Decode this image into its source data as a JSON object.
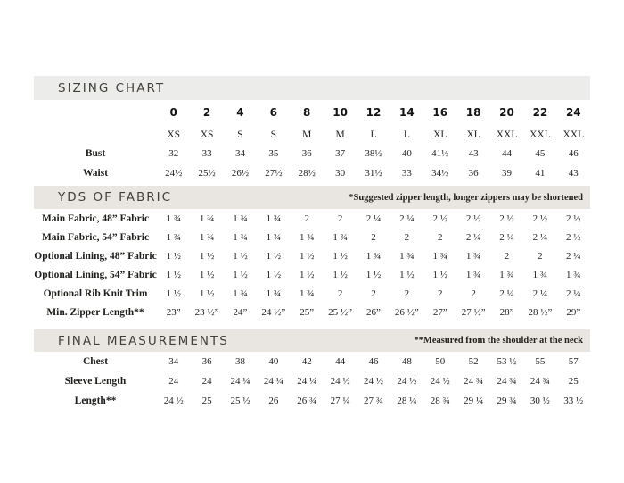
{
  "colors": {
    "page_background": "#ffffff",
    "header_bar_gray": "#ececea",
    "header_bar_beige": "#e9e6e1",
    "header_title_text": "#43403c",
    "body_text": "#232220"
  },
  "sizing_chart": {
    "title": "SIZING CHART",
    "size_numbers": [
      "0",
      "2",
      "4",
      "6",
      "8",
      "10",
      "12",
      "14",
      "16",
      "18",
      "20",
      "22",
      "24"
    ],
    "size_letters": [
      "XS",
      "XS",
      "S",
      "S",
      "M",
      "M",
      "L",
      "L",
      "XL",
      "XL",
      "XXL",
      "XXL",
      "XXL"
    ],
    "rows": [
      {
        "label": "Bust",
        "values": [
          "32",
          "33",
          "34",
          "35",
          "36",
          "37",
          "38½",
          "40",
          "41½",
          "43",
          "44",
          "45",
          "46"
        ]
      },
      {
        "label": "Waist",
        "values": [
          "24½",
          "25½",
          "26½",
          "27½",
          "28½",
          "30",
          "31½",
          "33",
          "34½",
          "36",
          "39",
          "41",
          "43"
        ]
      }
    ]
  },
  "yds_of_fabric": {
    "title": "YDS OF FABRIC",
    "note": "*Suggested zipper length, longer zippers may be shortened",
    "rows": [
      {
        "label": "Main Fabric, 48” Fabric",
        "values": [
          "1 ¾",
          "1 ¾",
          "1 ¾",
          "1 ¾",
          "2",
          "2",
          "2 ¼",
          "2 ¼",
          "2 ½",
          "2 ½",
          "2 ½",
          "2 ½",
          "2 ½"
        ]
      },
      {
        "label": "Main Fabric, 54” Fabric",
        "values": [
          "1 ¾",
          "1 ¾",
          "1 ¾",
          "1 ¾",
          "1 ¾",
          "1 ¾",
          "2",
          "2",
          "2",
          "2 ¼",
          "2 ¼",
          "2 ¼",
          "2 ½"
        ]
      },
      {
        "label": "Optional Lining, 48” Fabric",
        "values": [
          "1 ½",
          "1 ½",
          "1 ½",
          "1 ½",
          "1 ½",
          "1 ½",
          "1 ¾",
          "1 ¾",
          "1 ¾",
          "1 ¾",
          "2",
          "2",
          "2 ¼"
        ]
      },
      {
        "label": "Optional Lining, 54” Fabric",
        "values": [
          "1 ½",
          "1 ½",
          "1 ½",
          "1 ½",
          "1 ½",
          "1 ½",
          "1 ½",
          "1 ½",
          "1 ½",
          "1 ¾",
          "1 ¾",
          "1 ¾",
          "1 ¾"
        ]
      },
      {
        "label": "Optional Rib Knit Trim",
        "values": [
          "1 ½",
          "1 ½",
          "1 ¾",
          "1 ¾",
          "1 ¾",
          "2",
          "2",
          "2",
          "2",
          "2",
          "2 ¼",
          "2 ¼",
          "2 ¼"
        ]
      },
      {
        "label": "Min. Zipper Length**",
        "values": [
          "23”",
          "23 ½”",
          "24”",
          "24 ½”",
          "25”",
          "25 ½”",
          "26”",
          "26 ½”",
          "27”",
          "27 ½”",
          "28”",
          "28 ½”",
          "29”"
        ]
      }
    ]
  },
  "final_measurements": {
    "title": "FINAL MEASUREMENTS",
    "note": "**Measured from the shoulder at the neck",
    "rows": [
      {
        "label": "Chest",
        "values": [
          "34",
          "36",
          "38",
          "40",
          "42",
          "44",
          "46",
          "48",
          "50",
          "52",
          "53 ½",
          "55",
          "57"
        ]
      },
      {
        "label": "Sleeve Length",
        "values": [
          "24",
          "24",
          "24 ¼",
          "24 ¼",
          "24 ¼",
          "24 ½",
          "24 ½",
          "24 ½",
          "24 ½",
          "24 ¾",
          "24 ¾",
          "24 ¾",
          "25"
        ]
      },
      {
        "label": "Length**",
        "values": [
          "24 ½",
          "25",
          "25 ½",
          "26",
          "26 ¾",
          "27 ¼",
          "27 ¾",
          "28 ¼",
          "28 ¾",
          "29 ¼",
          "29 ¾",
          "30 ½",
          "33 ½"
        ]
      }
    ]
  }
}
